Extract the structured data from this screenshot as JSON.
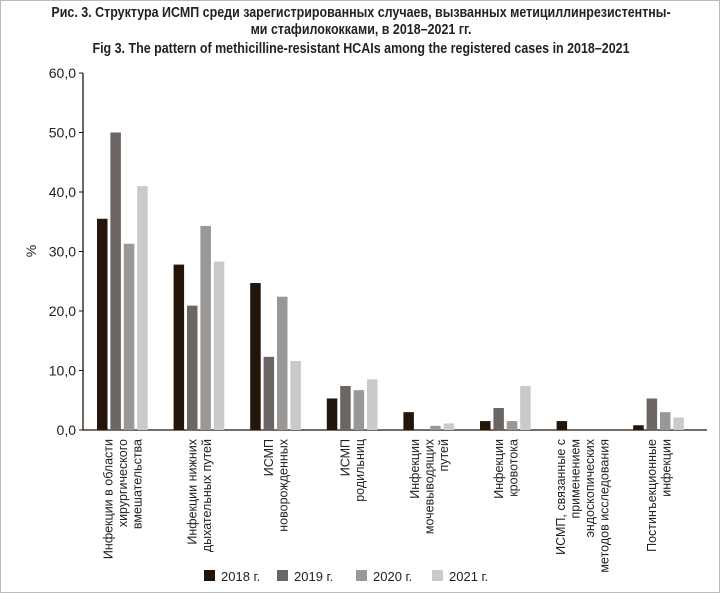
{
  "chart_data": {
    "type": "bar",
    "title_ru_line1": "Рис. 3. Структура ИСМП среди зарегистрированных случаев, вызванных метициллинрезистентны-",
    "title_ru_line2": "ми стафилококками, в 2018–2021  гг.",
    "title_en": "Fig 3. The pattern of methicilline-resistant HCAIs among the registered cases in 2018–2021",
    "ylabel": "%",
    "xlabel": "",
    "ylim": [
      0,
      60
    ],
    "yticks": [
      "0,0",
      "10,0",
      "20,0",
      "30,0",
      "40,0",
      "50,0",
      "60,0"
    ],
    "ytick_values": [
      0,
      10,
      20,
      30,
      40,
      50,
      60
    ],
    "grid": false,
    "legend_position": "bottom",
    "categories": [
      [
        "Инфекции в области",
        "хирургического",
        "вмешательства"
      ],
      [
        "Инфекции нижних",
        "дыхательных путей"
      ],
      [
        "ИСМП",
        "новорожденных"
      ],
      [
        "ИСМП",
        "родильниц"
      ],
      [
        "Инфекции",
        "мочевыводящих",
        "путей"
      ],
      [
        "Инфекции",
        "кровотока"
      ],
      [
        "ИСМП, связанные с",
        "применением",
        "эндоскопических",
        "методов исследования"
      ],
      [
        "Постинъекционные",
        "инфекции"
      ]
    ],
    "series": [
      {
        "name": "2018 г.",
        "color": "#231509",
        "values": [
          35.5,
          27.8,
          24.7,
          5.3,
          3.0,
          1.5,
          1.5,
          0.8
        ]
      },
      {
        "name": "2019 г.",
        "color": "#6b6663",
        "values": [
          50.0,
          20.9,
          12.3,
          7.4,
          0,
          3.7,
          0,
          5.3
        ]
      },
      {
        "name": "2020 г.",
        "color": "#9a9897",
        "values": [
          31.3,
          34.3,
          22.4,
          6.7,
          0.7,
          1.5,
          0,
          3.0
        ]
      },
      {
        "name": "2021 г.",
        "color": "#cbcaca",
        "values": [
          41.0,
          28.3,
          11.6,
          8.5,
          1.1,
          7.4,
          0,
          2.1
        ]
      }
    ]
  }
}
